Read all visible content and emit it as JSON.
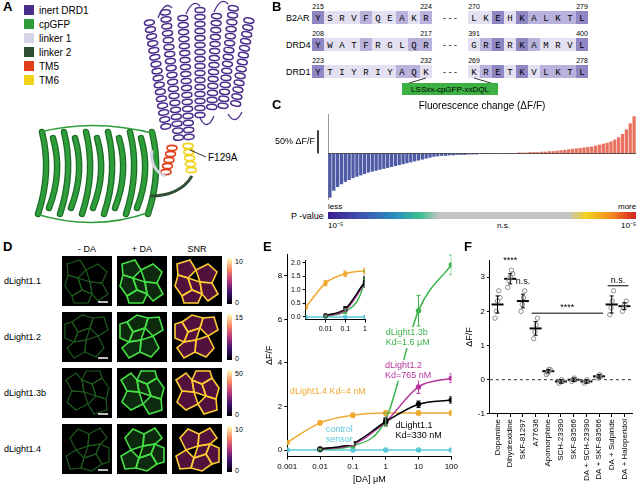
{
  "panels": {
    "A": {
      "label": "A",
      "legend": [
        {
          "name": "inert DRD1",
          "color": "#4b2d8c"
        },
        {
          "name": "cpGFP",
          "color": "#2e9e3a"
        },
        {
          "name": "linker 1",
          "color": "#d7d4e6"
        },
        {
          "name": "linker 2",
          "color": "#2f4f34"
        },
        {
          "name": "TM5",
          "color": "#e2401c"
        },
        {
          "name": "TM6",
          "color": "#f2d31b"
        }
      ],
      "annotation": "F129A"
    },
    "B": {
      "label": "B",
      "rows": [
        {
          "name": "B2AR",
          "numbers": [
            215,
            224,
            270,
            279
          ],
          "left": "YSRVFQEAKR",
          "right": "LKEHKALKTL"
        },
        {
          "name": "DRD4",
          "numbers": [
            208,
            217,
            391,
            400
          ],
          "left": "YWATFRGLQR",
          "right": "GRERKAMRVL"
        },
        {
          "name": "DRD1",
          "numbers": [
            223,
            232,
            269,
            278
          ],
          "left": "YTIYRIYAQK",
          "right": "KRETKVLKTL"
        }
      ],
      "gap": "- - -",
      "insert": "LSSxx-cpGFP-xxDQL"
    },
    "D": {
      "label": "D",
      "columns": [
        "- DA",
        "+ DA",
        "SNR"
      ],
      "rows": [
        {
          "name": "dLight1.1",
          "colorbar_ticks": [
            0,
            10
          ]
        },
        {
          "name": "dLight1.2",
          "colorbar_ticks": [
            0,
            15
          ]
        },
        {
          "name": "dLight1.3b",
          "colorbar_ticks": [
            0,
            50
          ]
        },
        {
          "name": "dLight1.4",
          "colorbar_ticks": [
            0,
            10
          ]
        }
      ]
    }
  },
  "chart_data": [
    {
      "panel_label": "C",
      "type": "bar",
      "title": "Fluorescence change (ΔF/F)",
      "values": [
        -95,
        -80,
        -72,
        -66,
        -61,
        -57,
        -53,
        -50,
        -47,
        -44,
        -41,
        -39,
        -37,
        -35,
        -33,
        -31,
        -29,
        -27,
        -25,
        -23,
        -21,
        -19,
        -17,
        -15,
        -13,
        -11,
        -9,
        -7,
        -6,
        -5,
        -5,
        -4,
        -4,
        -3,
        -3,
        -3,
        -2,
        -2,
        -2,
        -1,
        -1,
        -1,
        -1,
        0,
        0,
        1,
        1,
        1,
        1,
        2,
        2,
        2,
        3,
        3,
        3,
        4,
        4,
        5,
        5,
        6,
        7,
        8,
        9,
        10,
        11,
        12,
        13,
        14,
        15,
        17,
        19,
        21,
        23,
        26,
        30,
        35,
        42,
        52,
        65,
        80
      ],
      "colors": [
        "#4e5ba6",
        "#4e5ba6",
        "#4e5ba6",
        "#4e5ba6",
        "#4e5ba6",
        "#4e5ba6",
        "#4e5ba6",
        "#4e5ba6",
        "#4e5ba6",
        "#4e5ba6",
        "#4e5ba6",
        "#4e5ba6",
        "#4e5ba6",
        "#4e5ba6",
        "#4e5ba6",
        "#4e5ba6",
        "#4e5ba6",
        "#4e5ba6",
        "#4e5ba6",
        "#4e5ba6",
        "#4e5ba6",
        "#4e5ba6",
        "#4e5ba6",
        "#4e5ba6",
        "#4e5ba6",
        "#4e5ba6",
        "#4e5ba6",
        "#4e5ba6",
        "#4e5ba6",
        "#4e5ba6",
        "#4e5ba6",
        "#4e5ba6",
        "#4e5ba6",
        "#4e5ba6",
        "#4e5ba6",
        "#4e5ba6",
        "#4e5ba6",
        "#4e5ba6",
        "#4e5ba6",
        "#4e5ba6",
        "#4e5ba6",
        "#4e5ba6",
        "#4e5ba6",
        "#4e5ba6",
        "#4e5ba6",
        "#e8725f",
        "#e8725f",
        "#e8725f",
        "#e8725f",
        "#e8725f",
        "#e8725f",
        "#e8725f",
        "#e8725f",
        "#e8725f",
        "#e8725f",
        "#e8725f",
        "#e8725f",
        "#e8725f",
        "#e8725f",
        "#e8725f",
        "#e8725f",
        "#e8725f",
        "#e8725f",
        "#e8725f",
        "#e8725f",
        "#e8725f",
        "#e8725f",
        "#e8725f",
        "#e8725f",
        "#e8725f",
        "#e8725f",
        "#e8725f",
        "#e8725f",
        "#e8725f",
        "#e8725f",
        "#e8725f",
        "#e8725f",
        "#e8725f",
        "#e8725f",
        "#e8725f"
      ],
      "ylim": [
        -100,
        85
      ],
      "tick_labels": false,
      "grid": false,
      "scale_bar": {
        "value": 50,
        "label": "50% ΔF/F"
      },
      "p_value_bar": {
        "title": "P -value",
        "ends": [
          "less",
          "more"
        ],
        "tick_labels": [
          "10⁻⁵",
          "n.s.",
          "10⁻⁵"
        ]
      }
    },
    {
      "panel_label": "E",
      "type": "line",
      "log": "x",
      "marker": "circle",
      "grid": false,
      "xlabel": "[DA] μM",
      "ylabel": "ΔF/F",
      "x": [
        0.001,
        0.01,
        0.1,
        1,
        10,
        100
      ],
      "xlim": [
        0.001,
        100
      ],
      "xticks": [
        0.001,
        0.01,
        0.1,
        1,
        10,
        100
      ],
      "ylim": [
        -0.3,
        9
      ],
      "yticks": [
        0,
        2,
        4,
        6,
        8
      ],
      "series": [
        {
          "name": "dLight1.1",
          "kd": "Kd=330 nM",
          "color": "#000000",
          "values": [
            null,
            0.05,
            0.3,
            1.3,
            2.1,
            2.3
          ],
          "errors": [
            null,
            0.05,
            0.08,
            0.15,
            0.15,
            0.15
          ]
        },
        {
          "name": "dLight1.2",
          "kd": "Kd=765 nM",
          "color": "#b5339e",
          "values": [
            null,
            0.04,
            0.25,
            1.3,
            2.9,
            3.3
          ],
          "errors": [
            null,
            0.03,
            0.05,
            0.2,
            0.3,
            0.2
          ]
        },
        {
          "name": "dLight1.3b",
          "kd": "Kd=1.6 μM",
          "color": "#3cb44b",
          "values": [
            null,
            0.03,
            0.2,
            1.4,
            6.4,
            8.5
          ],
          "errors": [
            null,
            0.03,
            0.08,
            0.3,
            0.7,
            0.45
          ]
        },
        {
          "name": "dLight1.4",
          "kd": "Kd=4 nM",
          "color": "#f0a830",
          "values": [
            0.35,
            1.25,
            1.6,
            1.7,
            1.7,
            1.7
          ],
          "errors": [
            0.05,
            0.1,
            0.1,
            0.1,
            0.1,
            0.1
          ]
        },
        {
          "name": "control sensor",
          "color": "#5bc8d9",
          "values": [
            0,
            0,
            0,
            0,
            0,
            0
          ]
        }
      ],
      "inset": {
        "xlim": [
          0.001,
          1
        ],
        "xticks": [
          0.01,
          0.1,
          1
        ],
        "ylim": [
          -0.1,
          2.1
        ],
        "yticks": [
          {
            "value": 0,
            "label": "0.0"
          },
          0.5,
          {
            "value": 1,
            "label": "1.0"
          },
          1.5,
          {
            "value": 2,
            "label": "2.0"
          }
        ]
      }
    },
    {
      "panel_label": "F",
      "type": "scatter",
      "marker": "circle",
      "color": "#8c8c8c",
      "grid": false,
      "ylabel": "ΔF/F",
      "categories": [
        "Dopamine",
        "Dihydrexidine",
        "SKF-81297",
        "A77636",
        "Apomorphine",
        "SCH-23390",
        "SKF-83566",
        "DA + SCH-23390",
        "DA + SKF-83566",
        "DA + Sulpiride",
        "DA + Haloperidol"
      ],
      "values": [
        2.2,
        2.95,
        2.3,
        1.5,
        0.25,
        -0.05,
        0,
        -0.05,
        0.1,
        2.2,
        2.15
      ],
      "errors": [
        0.25,
        0.15,
        0.2,
        0.2,
        0.05,
        0.05,
        0.05,
        0.05,
        0.05,
        0.25,
        0.1
      ],
      "points": [
        [
          1.8,
          2,
          2.3,
          2.6,
          2.4
        ],
        [
          2.7,
          2.9,
          3,
          3.2,
          3.1
        ],
        [
          2,
          2.2,
          2.4,
          2.6
        ],
        [
          1.2,
          1.4,
          1.6,
          1.8
        ],
        [
          0.15,
          0.2,
          0.3,
          0.3
        ],
        [
          -0.1,
          -0.05,
          0,
          -0.05
        ],
        [
          -0.05,
          0,
          0.05,
          0
        ],
        [
          -0.1,
          -0.05,
          0,
          -0.05
        ],
        [
          0.05,
          0.1,
          0.15,
          0.1
        ],
        [
          1.9,
          2.1,
          2.3,
          2.6
        ],
        [
          2,
          2.1,
          2.2,
          2.3
        ]
      ],
      "ylim": [
        -1,
        3.5
      ],
      "yticks": [
        -1,
        0,
        1,
        2,
        3
      ],
      "hline": 0,
      "annotations": [
        {
          "text": "****",
          "categories": [
            "Dihydrexidine"
          ]
        },
        {
          "text": "n.s.",
          "categories": [
            "SKF-81297"
          ]
        },
        {
          "text": "****",
          "categories": [
            "A77636",
            "DA + SKF-83566"
          ]
        },
        {
          "text": "n.s.",
          "categories": [
            "DA + Sulpiride",
            "DA + Haloperidol"
          ]
        }
      ]
    }
  ]
}
